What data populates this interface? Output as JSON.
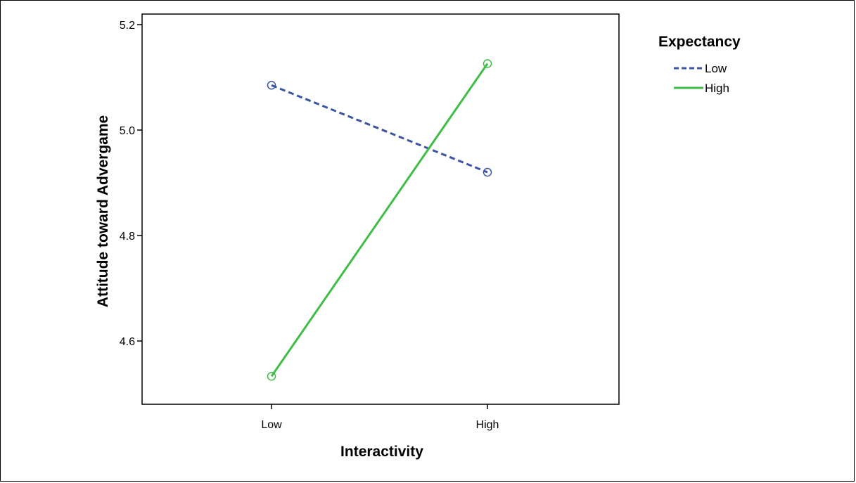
{
  "chart_data": {
    "type": "line",
    "title": "",
    "xlabel": "Interactivity",
    "ylabel": "Attitude toward Advergame",
    "categories": [
      "Low",
      "High"
    ],
    "ylim": [
      4.48,
      5.22
    ],
    "yticks": [
      "4.6",
      "4.8",
      "5.0",
      "5.2"
    ],
    "grid": false,
    "legend_title": "Expectancy",
    "legend_position": "top-right outside",
    "series": [
      {
        "name": "Low",
        "values": [
          5.085,
          4.92
        ],
        "color": "#3b53a4",
        "dash": "dashed",
        "marker": "open-circle"
      },
      {
        "name": "High",
        "values": [
          4.533,
          5.126
        ],
        "color": "#3fbd45",
        "dash": "solid",
        "marker": "open-circle"
      }
    ]
  }
}
